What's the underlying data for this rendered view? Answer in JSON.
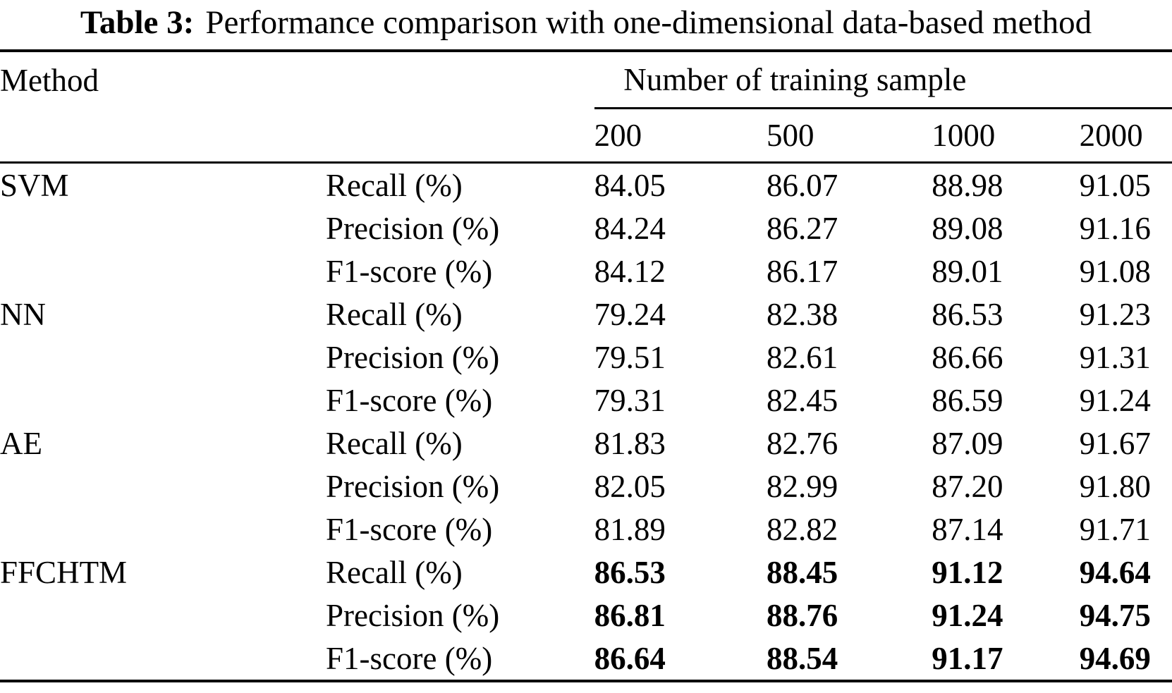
{
  "colors": {
    "text": "#000000",
    "background": "#ffffff",
    "rule": "#000000"
  },
  "caption": {
    "label": "Table 3:",
    "text": "Performance comparison with one-dimensional data-based method"
  },
  "table": {
    "method_header": "Method",
    "group_header": "Number of training sample",
    "sample_headers": [
      "200",
      "500",
      "1000",
      "2000"
    ],
    "rows": [
      {
        "method": "SVM",
        "metric": "Recall (%)",
        "values": [
          "84.05",
          "86.07",
          "88.98",
          "91.05"
        ],
        "bold": false
      },
      {
        "method": "",
        "metric": "Precision (%)",
        "values": [
          "84.24",
          "86.27",
          "89.08",
          "91.16"
        ],
        "bold": false
      },
      {
        "method": "",
        "metric": "F1-score (%)",
        "values": [
          "84.12",
          "86.17",
          "89.01",
          "91.08"
        ],
        "bold": false
      },
      {
        "method": "NN",
        "metric": "Recall (%)",
        "values": [
          "79.24",
          "82.38",
          "86.53",
          "91.23"
        ],
        "bold": false
      },
      {
        "method": "",
        "metric": "Precision (%)",
        "values": [
          "79.51",
          "82.61",
          "86.66",
          "91.31"
        ],
        "bold": false
      },
      {
        "method": "",
        "metric": "F1-score (%)",
        "values": [
          "79.31",
          "82.45",
          "86.59",
          "91.24"
        ],
        "bold": false
      },
      {
        "method": "AE",
        "metric": "Recall (%)",
        "values": [
          "81.83",
          "82.76",
          "87.09",
          "91.67"
        ],
        "bold": false
      },
      {
        "method": "",
        "metric": "Precision (%)",
        "values": [
          "82.05",
          "82.99",
          "87.20",
          "91.80"
        ],
        "bold": false
      },
      {
        "method": "",
        "metric": "F1-score (%)",
        "values": [
          "81.89",
          "82.82",
          "87.14",
          "91.71"
        ],
        "bold": false
      },
      {
        "method": "FFCHTM",
        "metric": "Recall (%)",
        "values": [
          "86.53",
          "88.45",
          "91.12",
          "94.64"
        ],
        "bold": true
      },
      {
        "method": "",
        "metric": "Precision (%)",
        "values": [
          "86.81",
          "88.76",
          "91.24",
          "94.75"
        ],
        "bold": true
      },
      {
        "method": "",
        "metric": "F1-score (%)",
        "values": [
          "86.64",
          "88.54",
          "91.17",
          "94.69"
        ],
        "bold": true
      }
    ]
  }
}
